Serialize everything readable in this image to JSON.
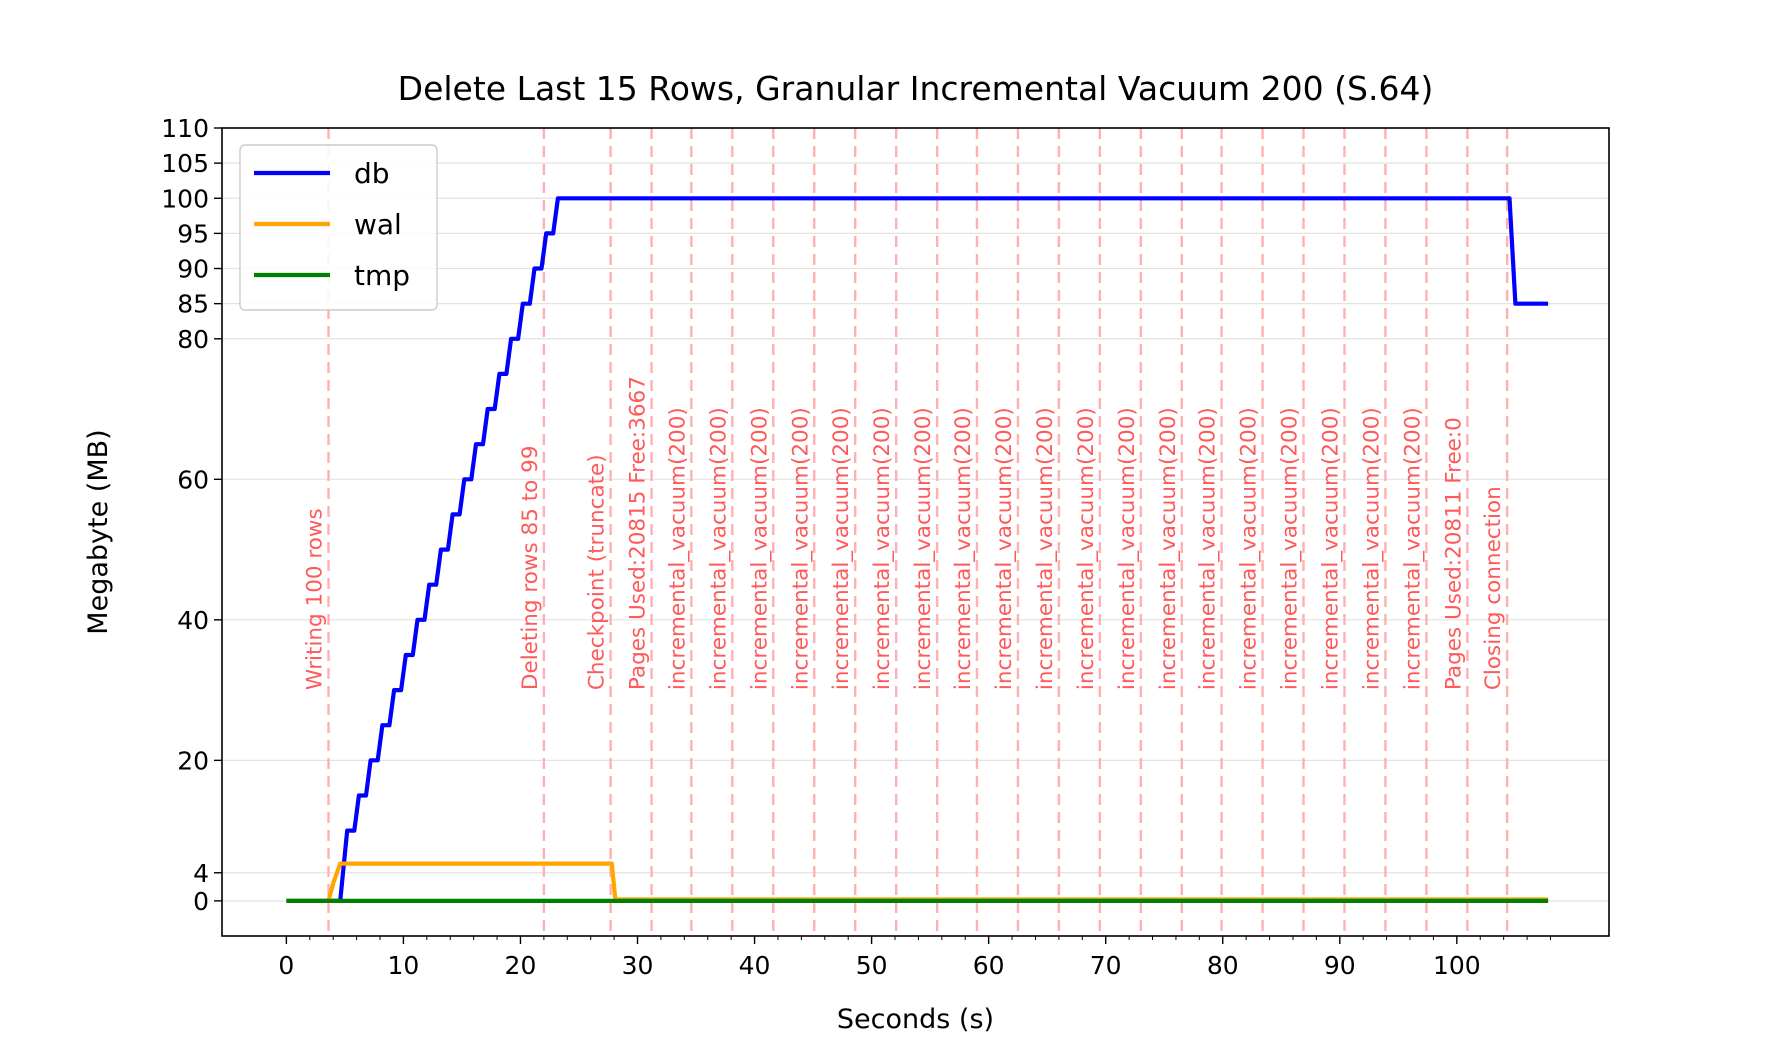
{
  "chart_data": {
    "type": "line",
    "title": "Delete Last 15 Rows, Granular Incremental Vacuum 200 (S.64)",
    "xlabel": "Seconds (s)",
    "ylabel": "Megabyte (MB)",
    "xlim": [
      -5.5,
      113
    ],
    "ylim": [
      -5,
      110
    ],
    "xticks": [
      0,
      10,
      20,
      30,
      40,
      50,
      60,
      70,
      80,
      90,
      100
    ],
    "yticks": [
      0,
      4,
      20,
      40,
      60,
      80,
      85,
      90,
      95,
      100,
      105,
      110
    ],
    "grid": "horizontal",
    "legend_position": "top-left",
    "series": [
      {
        "name": "db",
        "color": "#0000ff",
        "points": [
          [
            0,
            0
          ],
          [
            4.2,
            0
          ],
          [
            4.6,
            0
          ],
          [
            5.2,
            10
          ],
          [
            5.8,
            10
          ],
          [
            6.2,
            15
          ],
          [
            6.8,
            15
          ],
          [
            7.2,
            20
          ],
          [
            7.8,
            20
          ],
          [
            8.2,
            25
          ],
          [
            8.8,
            25
          ],
          [
            9.2,
            30
          ],
          [
            9.8,
            30
          ],
          [
            10.2,
            35
          ],
          [
            10.8,
            35
          ],
          [
            11.2,
            40
          ],
          [
            11.8,
            40
          ],
          [
            12.2,
            45
          ],
          [
            12.8,
            45
          ],
          [
            13.2,
            50
          ],
          [
            13.8,
            50
          ],
          [
            14.2,
            55
          ],
          [
            14.8,
            55
          ],
          [
            15.2,
            60
          ],
          [
            15.8,
            60
          ],
          [
            16.2,
            65
          ],
          [
            16.8,
            65
          ],
          [
            17.2,
            70
          ],
          [
            17.8,
            70
          ],
          [
            18.2,
            75
          ],
          [
            18.8,
            75
          ],
          [
            19.2,
            80
          ],
          [
            19.8,
            80
          ],
          [
            20.2,
            85
          ],
          [
            20.8,
            85
          ],
          [
            21.2,
            90
          ],
          [
            21.8,
            90
          ],
          [
            22.2,
            95
          ],
          [
            22.8,
            95
          ],
          [
            23.2,
            100
          ],
          [
            104.5,
            100
          ],
          [
            105,
            85
          ],
          [
            107.8,
            85
          ]
        ]
      },
      {
        "name": "wal",
        "color": "#ffa500",
        "points": [
          [
            0,
            0
          ],
          [
            3.6,
            0
          ],
          [
            4.0,
            2.5
          ],
          [
            4.6,
            5.3
          ],
          [
            27.8,
            5.3
          ],
          [
            28.1,
            0.2
          ],
          [
            107.8,
            0.2
          ]
        ]
      },
      {
        "name": "tmp",
        "color": "#008000",
        "points": [
          [
            0,
            0
          ],
          [
            107.8,
            0
          ]
        ]
      }
    ],
    "event_color": "#ffb0b0",
    "events": [
      {
        "x": 3.6,
        "label": "Writing 100 rows"
      },
      {
        "x": 22.0,
        "label": "Deleting rows 85 to 99"
      },
      {
        "x": 27.7,
        "label": "Checkpoint (truncate)"
      },
      {
        "x": 31.2,
        "label": "Pages Used:20815 Free:3667"
      },
      {
        "x": 34.6,
        "label": "incremental_vacuum(200)"
      },
      {
        "x": 38.1,
        "label": "incremental_vacuum(200)"
      },
      {
        "x": 41.6,
        "label": "incremental_vacuum(200)"
      },
      {
        "x": 45.1,
        "label": "incremental_vacuum(200)"
      },
      {
        "x": 48.6,
        "label": "incremental_vacuum(200)"
      },
      {
        "x": 52.1,
        "label": "incremental_vacuum(200)"
      },
      {
        "x": 55.6,
        "label": "incremental_vacuum(200)"
      },
      {
        "x": 59.0,
        "label": "incremental_vacuum(200)"
      },
      {
        "x": 62.5,
        "label": "incremental_vacuum(200)"
      },
      {
        "x": 66.0,
        "label": "incremental_vacuum(200)"
      },
      {
        "x": 69.5,
        "label": "incremental_vacuum(200)"
      },
      {
        "x": 73.0,
        "label": "incremental_vacuum(200)"
      },
      {
        "x": 76.5,
        "label": "incremental_vacuum(200)"
      },
      {
        "x": 79.9,
        "label": "incremental_vacuum(200)"
      },
      {
        "x": 83.4,
        "label": "incremental_vacuum(200)"
      },
      {
        "x": 86.9,
        "label": "incremental_vacuum(200)"
      },
      {
        "x": 90.4,
        "label": "incremental_vacuum(200)"
      },
      {
        "x": 93.9,
        "label": "incremental_vacuum(200)"
      },
      {
        "x": 97.4,
        "label": "incremental_vacuum(200)"
      },
      {
        "x": 100.9,
        "label": "Pages Used:20811 Free:0"
      },
      {
        "x": 104.3,
        "label": "Closing connection"
      }
    ]
  }
}
